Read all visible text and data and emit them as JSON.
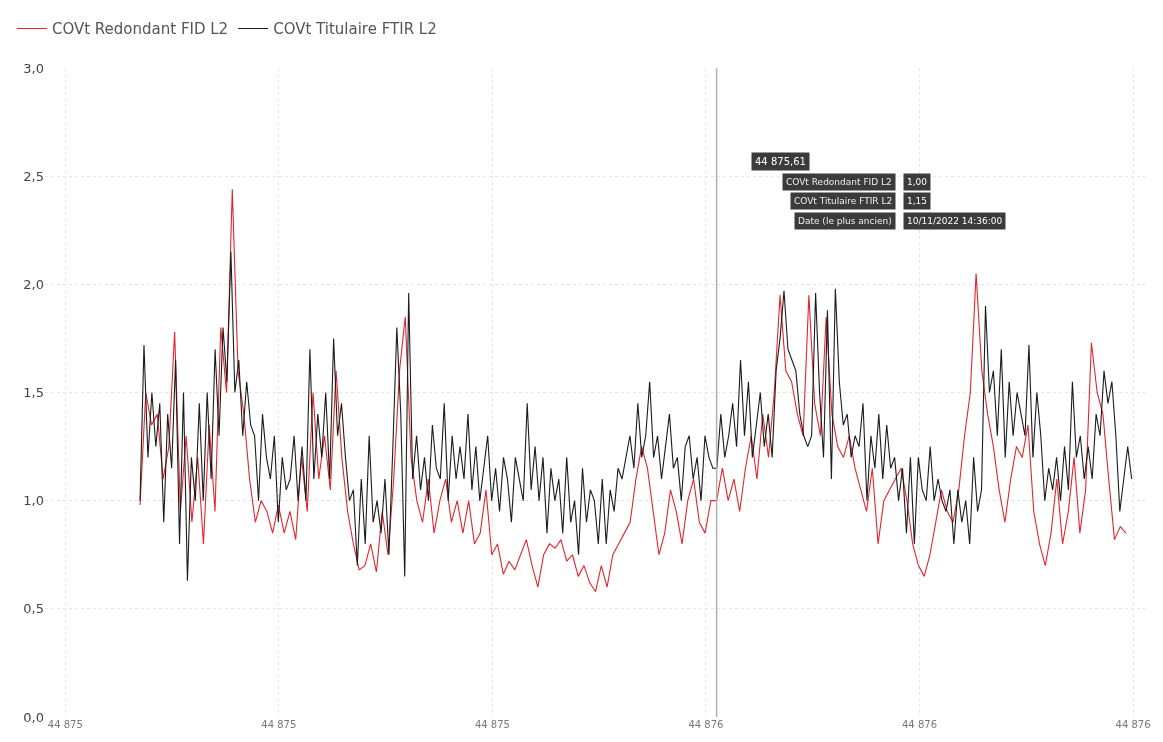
{
  "chart_data": {
    "type": "line",
    "xlim": [
      44874.981,
      44876.014
    ],
    "ylim": [
      0,
      3
    ],
    "xticks": [
      {
        "value": 44875.0,
        "label": "44 875"
      },
      {
        "value": 44875.2,
        "label": "44 875"
      },
      {
        "value": 44875.4,
        "label": "44 875"
      },
      {
        "value": 44875.6,
        "label": "44 876"
      },
      {
        "value": 44875.8,
        "label": "44 876"
      },
      {
        "value": 44876.0,
        "label": "44 876"
      }
    ],
    "yticks": [
      {
        "value": 0,
        "label": "0,0"
      },
      {
        "value": 0.5,
        "label": "0,5"
      },
      {
        "value": 1,
        "label": "1,0"
      },
      {
        "value": 1.5,
        "label": "1,5"
      },
      {
        "value": 2,
        "label": "2,0"
      },
      {
        "value": 2.5,
        "label": "2,5"
      },
      {
        "value": 3,
        "label": "3,0"
      }
    ],
    "grid": true,
    "legend": "top left",
    "line_style": "solid",
    "ref_lines": [
      {
        "axis": "x",
        "value": 44875.61,
        "color": "#b0b0b0"
      }
    ],
    "annotations": [
      "44 875,61",
      "COVt Redondant FID L2",
      "1,00",
      "COVt Titulaire FTIR L2",
      "1,15",
      "Date (le plus ancien)",
      "10/11/2022 14:36:00"
    ],
    "series": [
      {
        "name": "COVt Redondant FID L2",
        "color": "#e3262d",
        "x": [
          44875.07,
          44875.0754,
          44875.0808,
          44875.0862,
          44875.0916,
          44875.097,
          44875.1024,
          44875.1078,
          44875.1132,
          44875.1186,
          44875.124,
          44875.1294,
          44875.1348,
          44875.1402,
          44875.1456,
          44875.151,
          44875.1564,
          44875.1618,
          44875.1672,
          44875.1726,
          44875.178,
          44875.1834,
          44875.1888,
          44875.1942,
          44875.1996,
          44875.205,
          44875.2104,
          44875.2158,
          44875.2212,
          44875.2266,
          44875.232,
          44875.2374,
          44875.2428,
          44875.2482,
          44875.2536,
          44875.259,
          44875.2644,
          44875.2698,
          44875.2752,
          44875.2806,
          44875.286,
          44875.2914,
          44875.2968,
          44875.3022,
          44875.3076,
          44875.313,
          44875.3184,
          44875.3238,
          44875.3292,
          44875.3346,
          44875.34,
          44875.3454,
          44875.3508,
          44875.3562,
          44875.3616,
          44875.367,
          44875.3724,
          44875.3778,
          44875.3832,
          44875.3886,
          44875.394,
          44875.3994,
          44875.4048,
          44875.4102,
          44875.4156,
          44875.421,
          44875.4264,
          44875.4318,
          44875.4372,
          44875.4426,
          44875.448,
          44875.4534,
          44875.4588,
          44875.4642,
          44875.4696,
          44875.475,
          44875.4804,
          44875.4858,
          44875.4912,
          44875.4966,
          44875.502,
          44875.5074,
          44875.5128,
          44875.5182,
          44875.5236,
          44875.529,
          44875.5344,
          44875.5398,
          44875.5452,
          44875.5506,
          44875.556,
          44875.5614,
          44875.5668,
          44875.5722,
          44875.5776,
          44875.583,
          44875.5884,
          44875.5938,
          44875.5992,
          44875.6046,
          44875.61,
          44875.6154,
          44875.6208,
          44875.6262,
          44875.6316,
          44875.637,
          44875.6424,
          44875.6478,
          44875.6532,
          44875.6586,
          44875.664,
          44875.6694,
          44875.6748,
          44875.6802,
          44875.6856,
          44875.691,
          44875.6964,
          44875.7018,
          44875.7072,
          44875.7126,
          44875.718,
          44875.7234,
          44875.7288,
          44875.7342,
          44875.7396,
          44875.745,
          44875.7504,
          44875.7558,
          44875.7612,
          44875.7666,
          44875.772,
          44875.7774,
          44875.7828,
          44875.7882,
          44875.7936,
          44875.799,
          44875.8044,
          44875.8098,
          44875.8152,
          44875.8206,
          44875.826,
          44875.8314,
          44875.8368,
          44875.8422,
          44875.8476,
          44875.853,
          44875.8584,
          44875.8638,
          44875.8692,
          44875.8746,
          44875.88,
          44875.8854,
          44875.8908,
          44875.8962,
          44875.9016,
          44875.907,
          44875.9124,
          44875.9178,
          44875.9232,
          44875.9286,
          44875.934,
          44875.9394,
          44875.9448,
          44875.9502,
          44875.9556,
          44875.961,
          44875.9664,
          44875.9718,
          44875.9772,
          44875.9826,
          44875.988,
          44875.9934
        ],
        "values": [
          0.98,
          1.5,
          1.35,
          1.4,
          1.1,
          1.25,
          1.78,
          0.95,
          1.3,
          0.9,
          1.2,
          0.8,
          1.35,
          0.95,
          1.8,
          1.5,
          2.44,
          1.6,
          1.4,
          1.1,
          0.9,
          1.0,
          0.95,
          0.85,
          0.98,
          0.85,
          0.95,
          0.82,
          1.2,
          0.95,
          1.5,
          1.1,
          1.3,
          1.05,
          1.6,
          1.2,
          0.95,
          0.8,
          0.68,
          0.7,
          0.8,
          0.67,
          0.95,
          0.75,
          1.1,
          1.6,
          1.85,
          1.2,
          1.0,
          0.9,
          1.1,
          0.85,
          1.0,
          1.1,
          0.9,
          1.0,
          0.85,
          1.0,
          0.8,
          0.85,
          1.05,
          0.75,
          0.8,
          0.66,
          0.72,
          0.68,
          0.75,
          0.82,
          0.7,
          0.6,
          0.75,
          0.8,
          0.78,
          0.82,
          0.72,
          0.75,
          0.65,
          0.7,
          0.62,
          0.58,
          0.7,
          0.6,
          0.75,
          0.8,
          0.85,
          0.9,
          1.1,
          1.25,
          1.15,
          0.95,
          0.75,
          0.85,
          1.05,
          0.95,
          0.8,
          1.0,
          1.1,
          0.9,
          0.85,
          1.0,
          1.0,
          1.15,
          1.0,
          1.1,
          0.95,
          1.15,
          1.3,
          1.1,
          1.4,
          1.2,
          1.5,
          1.95,
          1.6,
          1.55,
          1.4,
          1.3,
          1.95,
          1.45,
          1.3,
          1.85,
          1.4,
          1.25,
          1.2,
          1.3,
          1.15,
          1.05,
          0.95,
          1.15,
          0.8,
          1.0,
          1.05,
          1.1,
          1.15,
          1.0,
          0.8,
          0.7,
          0.65,
          0.75,
          0.9,
          1.05,
          0.95,
          0.9,
          1.05,
          1.3,
          1.5,
          2.05,
          1.6,
          1.4,
          1.25,
          1.05,
          0.9,
          1.1,
          1.25,
          1.2,
          1.35,
          0.95,
          0.8,
          0.7,
          0.85,
          1.1,
          0.8,
          0.95,
          1.2,
          0.85,
          1.05,
          1.73,
          1.5,
          1.4,
          1.1,
          0.82,
          0.88,
          0.85
        ]
      },
      {
        "name": "COVt Titulaire FTIR L2",
        "color": "#1c1c1c",
        "x": [
          44875.07,
          44875.0737,
          44875.0774,
          44875.0811,
          44875.0848,
          44875.0885,
          44875.0922,
          44875.0959,
          44875.0996,
          44875.1033,
          44875.107,
          44875.1107,
          44875.1144,
          44875.1181,
          44875.1218,
          44875.1255,
          44875.1292,
          44875.1329,
          44875.1366,
          44875.1403,
          44875.144,
          44875.1477,
          44875.1514,
          44875.1551,
          44875.1588,
          44875.1625,
          44875.1662,
          44875.1699,
          44875.1736,
          44875.1773,
          44875.181,
          44875.1847,
          44875.1884,
          44875.1921,
          44875.1958,
          44875.1995,
          44875.2032,
          44875.2069,
          44875.2106,
          44875.2143,
          44875.218,
          44875.2217,
          44875.2254,
          44875.2291,
          44875.2328,
          44875.2365,
          44875.2402,
          44875.2439,
          44875.2476,
          44875.2513,
          44875.255,
          44875.2587,
          44875.2624,
          44875.2661,
          44875.2698,
          44875.2735,
          44875.2772,
          44875.2809,
          44875.2846,
          44875.2883,
          44875.292,
          44875.2957,
          44875.2994,
          44875.3031,
          44875.3068,
          44875.3105,
          44875.3142,
          44875.3179,
          44875.3216,
          44875.3253,
          44875.329,
          44875.3327,
          44875.3364,
          44875.3401,
          44875.3438,
          44875.3475,
          44875.3512,
          44875.3549,
          44875.3586,
          44875.3623,
          44875.366,
          44875.3697,
          44875.3734,
          44875.3771,
          44875.3808,
          44875.3845,
          44875.3882,
          44875.3919,
          44875.3956,
          44875.3993,
          44875.403,
          44875.4067,
          44875.4104,
          44875.4141,
          44875.4178,
          44875.4215,
          44875.4252,
          44875.4289,
          44875.4326,
          44875.4363,
          44875.44,
          44875.4437,
          44875.4474,
          44875.4511,
          44875.4548,
          44875.4585,
          44875.4622,
          44875.4659,
          44875.4696,
          44875.4733,
          44875.477,
          44875.4807,
          44875.4844,
          44875.4881,
          44875.4918,
          44875.4955,
          44875.4992,
          44875.5029,
          44875.5066,
          44875.5103,
          44875.514,
          44875.5177,
          44875.5214,
          44875.5251,
          44875.5288,
          44875.5325,
          44875.5362,
          44875.5399,
          44875.5436,
          44875.5473,
          44875.551,
          44875.5547,
          44875.5584,
          44875.5621,
          44875.5658,
          44875.5695,
          44875.5732,
          44875.5769,
          44875.5806,
          44875.5843,
          44875.588,
          44875.5917,
          44875.5954,
          44875.5991,
          44875.6028,
          44875.6065,
          44875.6102,
          44875.6139,
          44875.6176,
          44875.6213,
          44875.625,
          44875.6287,
          44875.6324,
          44875.6361,
          44875.6398,
          44875.6435,
          44875.6472,
          44875.6509,
          44875.6546,
          44875.6583,
          44875.662,
          44875.6657,
          44875.6694,
          44875.6731,
          44875.6768,
          44875.6805,
          44875.6842,
          44875.6879,
          44875.6916,
          44875.6953,
          44875.699,
          44875.7027,
          44875.7064,
          44875.7101,
          44875.7138,
          44875.7175,
          44875.7212,
          44875.7249,
          44875.7286,
          44875.7323,
          44875.736,
          44875.7397,
          44875.7434,
          44875.7471,
          44875.7508,
          44875.7545,
          44875.7582,
          44875.7619,
          44875.7656,
          44875.7693,
          44875.773,
          44875.7767,
          44875.7804,
          44875.7841,
          44875.7878,
          44875.7915,
          44875.7952,
          44875.7989,
          44875.8026,
          44875.8063,
          44875.81,
          44875.8137,
          44875.8174,
          44875.8211,
          44875.8248,
          44875.8285,
          44875.8322,
          44875.8359,
          44875.8396,
          44875.8433,
          44875.847,
          44875.8507,
          44875.8544,
          44875.8581,
          44875.8618,
          44875.8655,
          44875.8692,
          44875.8729,
          44875.8766,
          44875.8803,
          44875.884,
          44875.8877,
          44875.8914,
          44875.8951,
          44875.8988,
          44875.9025,
          44875.9062,
          44875.9099,
          44875.9136,
          44875.9173,
          44875.921,
          44875.9247,
          44875.9284,
          44875.9321,
          44875.9358,
          44875.9395,
          44875.9432,
          44875.9469,
          44875.9506,
          44875.9543,
          44875.958,
          44875.9617,
          44875.9654,
          44875.9691,
          44875.9728,
          44875.9765,
          44875.9802,
          44875.9839,
          44875.9876,
          44875.9913,
          44875.995,
          44875.9987
        ],
        "values": [
          1.0,
          1.72,
          1.2,
          1.5,
          1.25,
          1.45,
          0.9,
          1.4,
          1.15,
          1.65,
          0.8,
          1.5,
          0.63,
          1.2,
          1.0,
          1.45,
          1.0,
          1.5,
          1.1,
          1.7,
          1.3,
          1.8,
          1.55,
          2.15,
          1.5,
          1.65,
          1.3,
          1.55,
          1.35,
          1.3,
          1.0,
          1.4,
          1.2,
          1.1,
          1.3,
          0.9,
          1.2,
          1.05,
          1.1,
          1.3,
          1.0,
          1.25,
          1.0,
          1.7,
          1.1,
          1.4,
          1.2,
          1.5,
          1.1,
          1.75,
          1.3,
          1.45,
          1.2,
          1.0,
          1.05,
          0.7,
          1.1,
          0.8,
          1.3,
          0.9,
          1.0,
          0.85,
          1.1,
          0.75,
          1.25,
          1.8,
          1.4,
          0.65,
          1.96,
          1.1,
          1.3,
          1.05,
          1.2,
          1.0,
          1.35,
          1.15,
          1.1,
          1.45,
          1.0,
          1.3,
          1.1,
          1.25,
          1.1,
          1.4,
          1.05,
          1.25,
          1.0,
          1.15,
          1.3,
          1.0,
          1.15,
          0.95,
          1.2,
          1.1,
          0.9,
          1.2,
          1.1,
          1.0,
          1.45,
          1.05,
          1.25,
          1.0,
          1.2,
          0.85,
          1.15,
          1.0,
          1.1,
          0.85,
          1.2,
          0.9,
          1.0,
          0.75,
          1.15,
          0.9,
          1.05,
          1.0,
          0.8,
          1.1,
          0.8,
          1.05,
          0.95,
          1.15,
          1.1,
          1.2,
          1.3,
          1.15,
          1.45,
          1.2,
          1.3,
          1.55,
          1.2,
          1.3,
          1.1,
          1.25,
          1.4,
          1.15,
          1.2,
          1.0,
          1.25,
          1.3,
          1.1,
          1.2,
          1.0,
          1.3,
          1.2,
          1.15,
          1.15,
          1.4,
          1.2,
          1.3,
          1.45,
          1.25,
          1.65,
          1.3,
          1.55,
          1.2,
          1.35,
          1.5,
          1.25,
          1.4,
          1.2,
          1.6,
          1.75,
          1.97,
          1.7,
          1.65,
          1.6,
          1.4,
          1.3,
          1.25,
          1.3,
          1.96,
          1.5,
          1.2,
          1.88,
          1.1,
          1.98,
          1.55,
          1.35,
          1.4,
          1.2,
          1.3,
          1.25,
          1.45,
          1.0,
          1.3,
          1.15,
          1.4,
          1.1,
          1.35,
          1.15,
          1.2,
          1.0,
          1.15,
          0.85,
          1.2,
          0.8,
          1.2,
          1.05,
          1.0,
          1.25,
          1.0,
          1.1,
          1.0,
          0.95,
          1.05,
          0.8,
          1.05,
          0.9,
          1.0,
          0.8,
          1.2,
          0.95,
          1.05,
          1.9,
          1.5,
          1.6,
          1.3,
          1.7,
          1.2,
          1.55,
          1.3,
          1.5,
          1.4,
          1.3,
          1.72,
          1.2,
          1.5,
          1.3,
          1.0,
          1.15,
          1.05,
          1.2,
          1.0,
          1.25,
          1.05,
          1.55,
          1.2,
          1.3,
          1.1,
          1.25,
          1.1,
          1.4,
          1.3,
          1.6,
          1.45,
          1.55,
          1.3,
          0.95,
          1.1,
          1.25,
          1.1
        ]
      }
    ]
  }
}
